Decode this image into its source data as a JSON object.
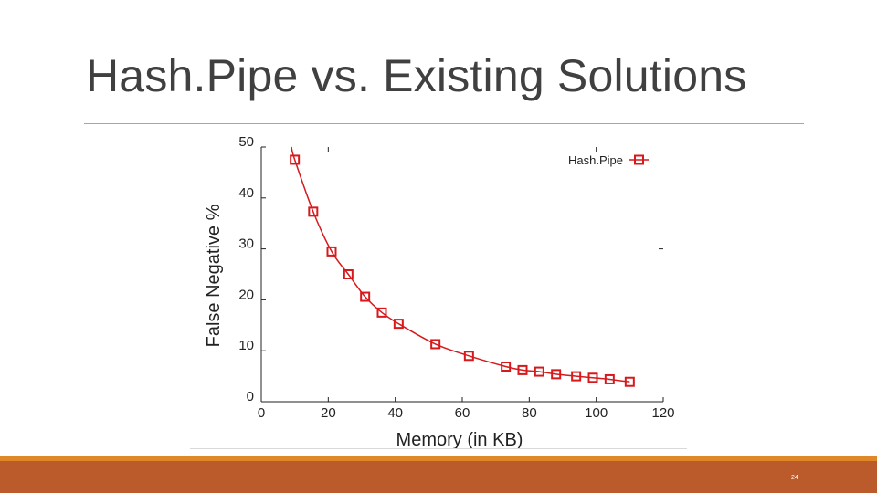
{
  "slide": {
    "title": "Hash.Pipe vs. Existing Solutions",
    "page_number": "24"
  },
  "colors": {
    "title_text": "#404040",
    "series_red": "#d7191c",
    "footer_orange": "#e08727",
    "footer_band": "#bb5a2a"
  },
  "chart_data": {
    "type": "line",
    "xlabel": "Memory (in KB)",
    "ylabel": "False Negative %",
    "xlim": [
      0,
      120
    ],
    "ylim": [
      0,
      50
    ],
    "x_ticks": [
      "0",
      "20",
      "40",
      "60",
      "80",
      "100",
      "120"
    ],
    "y_ticks": [
      "0",
      "10",
      "20",
      "30",
      "40",
      "50"
    ],
    "grid": false,
    "legend_position": "top-right",
    "series": [
      {
        "name": "Hash.Pipe",
        "marker": "square",
        "x": [
          10,
          15.5,
          21,
          26,
          31,
          36,
          41,
          52,
          62,
          73,
          78,
          83,
          88,
          94,
          99,
          104,
          110
        ],
        "y": [
          47.5,
          37.3,
          29.5,
          25,
          20.6,
          17.5,
          15.3,
          11.3,
          9,
          6.9,
          6.2,
          5.9,
          5.4,
          5,
          4.7,
          4.4,
          3.9
        ]
      }
    ]
  }
}
